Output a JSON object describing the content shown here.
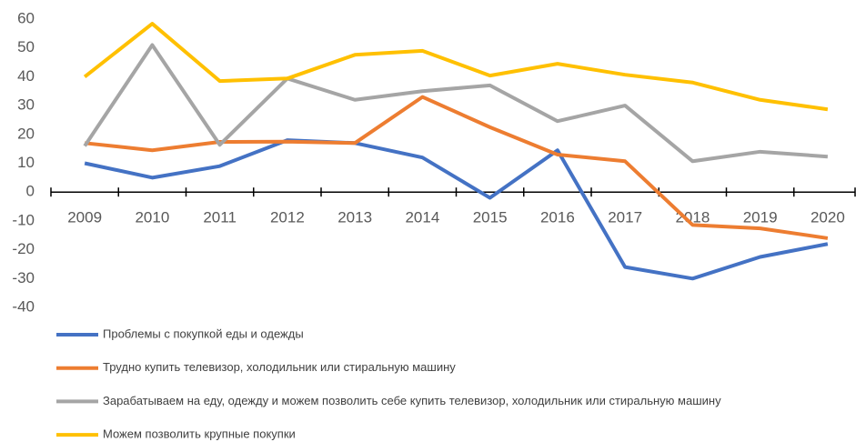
{
  "chart_data": {
    "type": "line",
    "categories": [
      "2009",
      "2010",
      "2011",
      "2012",
      "2013",
      "2014",
      "2015",
      "2016",
      "2017",
      "2018",
      "2019",
      "2020"
    ],
    "series": [
      {
        "name": "Проблемы с покупкой еды и одежды",
        "color": "#4472c4",
        "values": [
          10,
          5,
          9,
          18,
          17,
          12,
          -2,
          14.5,
          -26,
          -30,
          -22.5,
          -18
        ]
      },
      {
        "name": "Трудно купить телевизор, холодильник  или стиральную машину",
        "color": "#ed7d31",
        "values": [
          17,
          14.5,
          17.4,
          17.5,
          17,
          33,
          22.5,
          13,
          10.7,
          -11.4,
          -12.6,
          -16
        ]
      },
      {
        "name": "Зарабатываем на еду, одежду и можем позволить себе купить телевизор, холодильник или стиральную машину",
        "color": "#a5a5a5",
        "values": [
          16,
          51,
          16.4,
          39.4,
          32,
          35,
          37,
          24.6,
          30,
          10.7,
          14,
          12.3
        ]
      },
      {
        "name": "Можем позволить крупные покупки",
        "color": "#ffc000",
        "values": [
          40,
          58.4,
          38.5,
          39.4,
          47.6,
          49,
          40.4,
          44.5,
          40.7,
          38,
          32,
          28.7
        ]
      }
    ],
    "ylim": [
      -40,
      60
    ],
    "yticks": [
      -40,
      -30,
      -20,
      -10,
      0,
      10,
      20,
      30,
      40,
      50,
      60
    ],
    "grid": false,
    "legend": "bottom"
  }
}
